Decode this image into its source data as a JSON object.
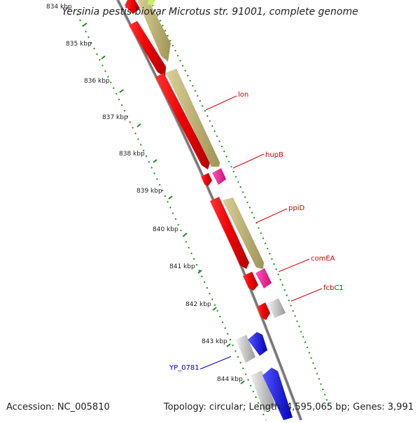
{
  "title": "Yersinia pestis biovar Microtus str. 91001, complete genome",
  "footer": {
    "accession": "Accession: NC_005810",
    "summary": "Topology: circular; Length: 4,595,065 bp; Genes: 3,991"
  },
  "kbp_labels": [
    "834 kbp",
    "835 kbp",
    "836 kbp",
    "837 kbp",
    "838 kbp",
    "839 kbp",
    "840 kbp",
    "841 kbp",
    "842 kbp",
    "843 kbp",
    "844 kbp"
  ],
  "gene_labels": [
    {
      "name": "lon",
      "color": "#dd0000"
    },
    {
      "name": "hupB",
      "color": "#dd0000"
    },
    {
      "name": "ppiD",
      "color": "#dd0000"
    },
    {
      "name": "comEA",
      "color": "#dd0000"
    },
    {
      "name": "fcbC1",
      "color": "#dd0000"
    },
    {
      "name": "YP_0781",
      "color": "#0000cc"
    }
  ],
  "colors": {
    "forward_cds": "#ee0000",
    "rrna_like": "#b8b070",
    "magenta": "#ee2299",
    "gray_feature": "#bbbbbb",
    "blue_feature": "#1111ee",
    "tick_green": "#228822",
    "backbone": "#777777"
  }
}
